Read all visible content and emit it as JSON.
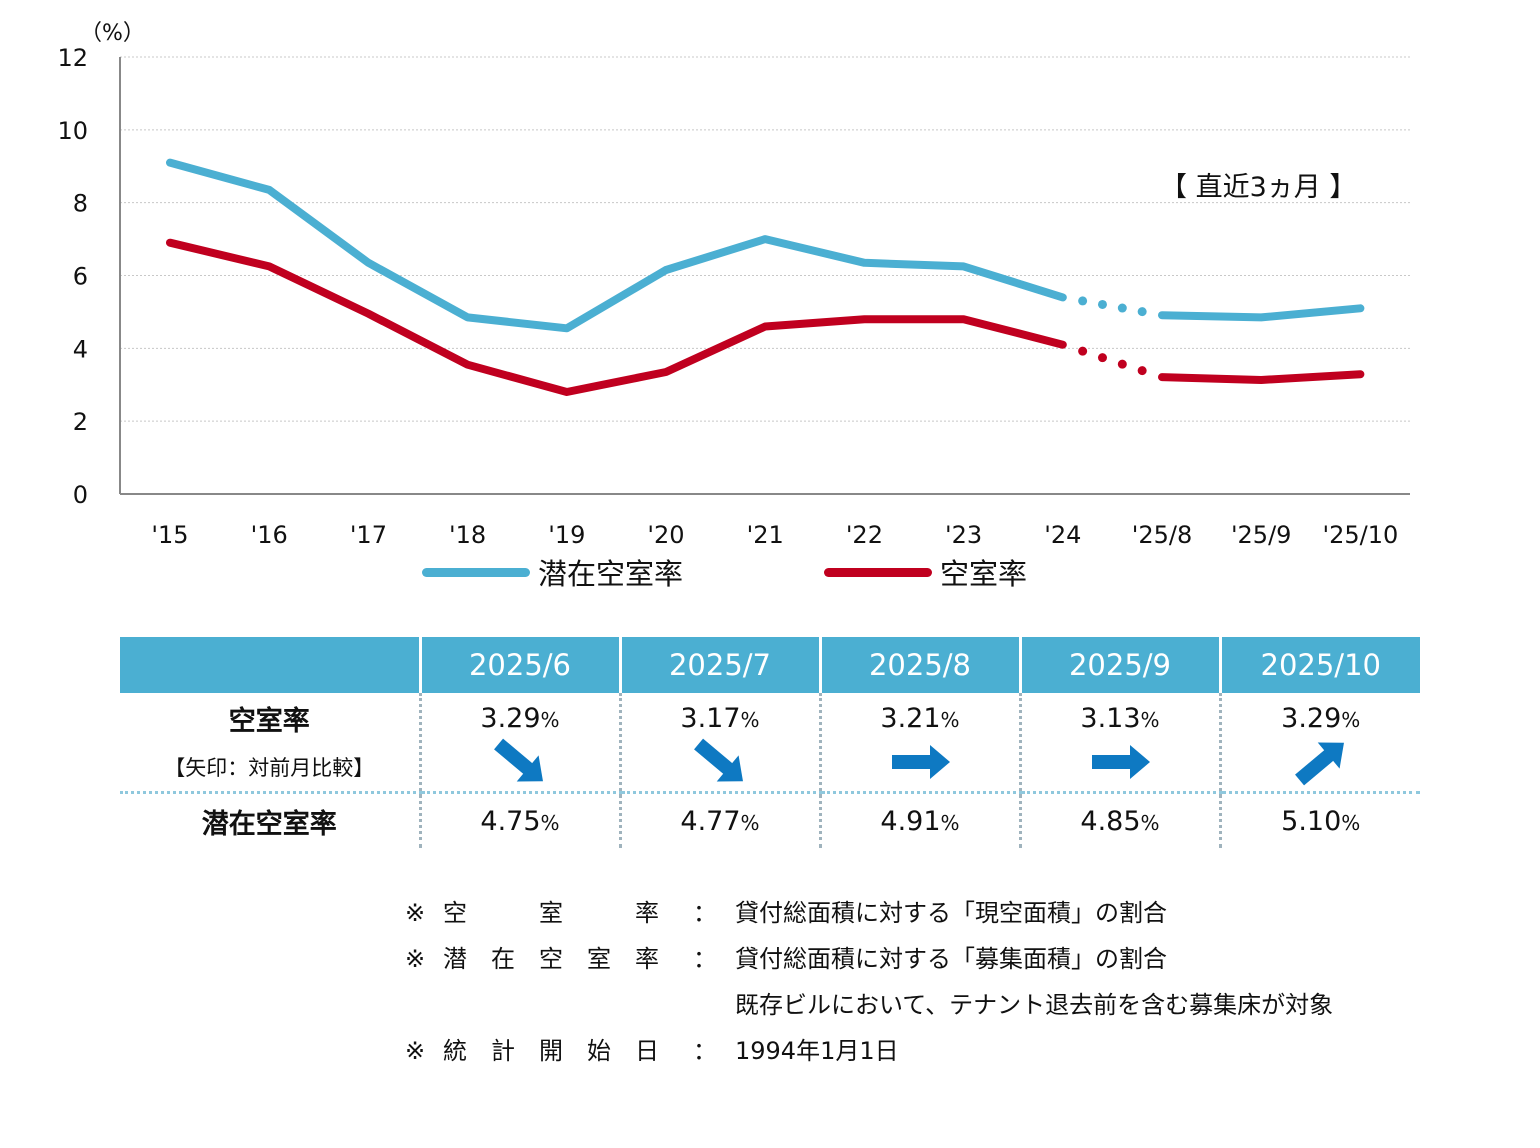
{
  "chart_data": {
    "type": "line",
    "unit_label": "（%）",
    "ylim": [
      0,
      12
    ],
    "y_ticks": [
      "0",
      "2",
      "4",
      "6",
      "8",
      "10",
      "12"
    ],
    "categories": [
      "'15",
      "'16",
      "'17",
      "'18",
      "'19",
      "'20",
      "'21",
      "'22",
      "'23",
      "'24",
      "'25/8",
      "'25/9",
      "'25/10"
    ],
    "series": [
      {
        "name": "潜在空室率",
        "color": "#4bafd2",
        "values": [
          9.1,
          8.35,
          6.35,
          4.85,
          4.55,
          6.15,
          7.0,
          6.35,
          6.25,
          5.4,
          4.91,
          4.85,
          5.1
        ]
      },
      {
        "name": "空室率",
        "color": "#c0001f",
        "values": [
          6.9,
          6.25,
          4.95,
          3.55,
          2.8,
          3.35,
          4.6,
          4.8,
          4.8,
          4.1,
          3.21,
          3.13,
          3.29
        ]
      }
    ],
    "dotted_segment": "'24 – '25/8",
    "annotation": "【 直近3ヵ月 】",
    "grid": "horizontal dotted",
    "legend_position": "bottom"
  },
  "table": {
    "columns": [
      "2025/6",
      "2025/7",
      "2025/8",
      "2025/9",
      "2025/10"
    ],
    "vacancy_row_label": "空室率",
    "vacancy_row_sublabel": "【矢印：対前月比較】",
    "potential_row_label": "潜在空室率",
    "pct_unit": "%",
    "vacancy_values": [
      "3.29",
      "3.17",
      "3.21",
      "3.13",
      "3.29"
    ],
    "arrows": [
      "down-right",
      "down-right",
      "right",
      "right",
      "up-right"
    ],
    "potential_values": [
      "4.75",
      "4.77",
      "4.91",
      "4.85",
      "5.10"
    ],
    "arrow_color": "#0e79c2"
  },
  "notes": [
    {
      "mark": "※",
      "term": "空　　　室　　　率",
      "colon": "：",
      "text": "貸付総面積に対する「現空面積」の割合"
    },
    {
      "mark": "※",
      "term": "潜　在　空　室　率",
      "colon": "：",
      "text": "貸付総面積に対する「募集面積」の割合"
    },
    {
      "mark": "",
      "term": "",
      "colon": "",
      "text": "既存ビルにおいて、テナント退去前を含む募集床が対象"
    },
    {
      "mark": "※",
      "term": "統　計　開　始　日",
      "colon": "：",
      "text": "1994年1月1日"
    }
  ]
}
